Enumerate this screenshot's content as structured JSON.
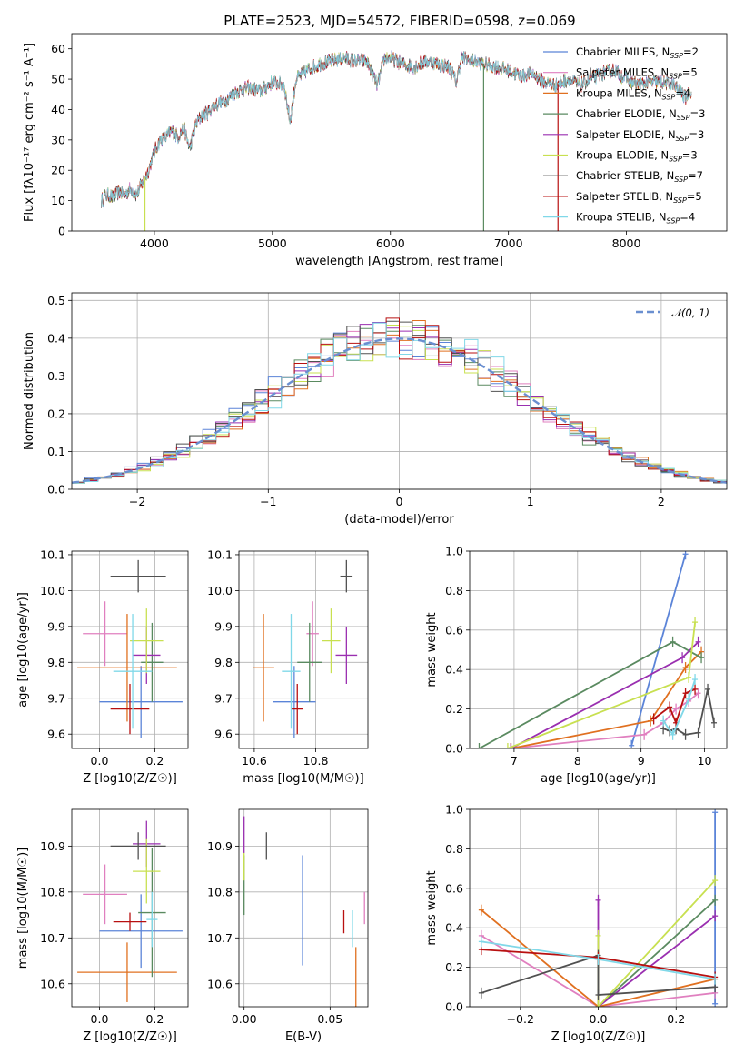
{
  "figure": {
    "title": "PLATE=2523, MJD=54572, FIBERID=0598, z=0.069"
  },
  "colors": {
    "Chabrier MILES": "#5b84d8",
    "Salpeter MILES": "#e07fbf",
    "Kroupa MILES": "#e07020",
    "Chabrier ELODIE": "#5a8a60",
    "Salpeter ELODIE": "#9a2fb0",
    "Kroupa ELODIE": "#c8e050",
    "Chabrier STELIB": "#505050",
    "Salpeter STELIB": "#b81010",
    "Kroupa STELIB": "#80d8e8"
  },
  "chart_data": [
    {
      "id": "spectrum",
      "type": "line",
      "title": "PLATE=2523, MJD=54572, FIBERID=0598, z=0.069",
      "xlabel": "wavelength [Angstrom, rest frame]",
      "ylabel": "Flux [fλ10⁻¹⁷ erg cm⁻² s⁻¹ A⁻¹]",
      "xlim": [
        3300,
        8850
      ],
      "ylim": [
        0,
        65
      ],
      "xticks": [
        "4000",
        "5000",
        "6000",
        "7000",
        "8000"
      ],
      "yticks": [
        "0",
        "10",
        "20",
        "30",
        "40",
        "50",
        "60"
      ],
      "grid": false,
      "legend_position": "top-right",
      "x": [
        3550,
        3600,
        3650,
        3700,
        3750,
        3800,
        3850,
        3900,
        3950,
        4000,
        4050,
        4100,
        4150,
        4200,
        4250,
        4300,
        4350,
        4400,
        4450,
        4500,
        4600,
        4700,
        4800,
        4900,
        5000,
        5100,
        5150,
        5200,
        5300,
        5400,
        5500,
        5600,
        5700,
        5800,
        5890,
        5950,
        6000,
        6100,
        6200,
        6300,
        6400,
        6500,
        6560,
        6600,
        6700,
        6800,
        6900,
        7000,
        7100,
        7200,
        7300,
        7400,
        7500,
        7600,
        7700,
        7800,
        7900,
        8000,
        8100,
        8200,
        8300,
        8400,
        8500,
        8550
      ],
      "flux": [
        10,
        12,
        11,
        13,
        12,
        14,
        12,
        16,
        20,
        26,
        30,
        31,
        33,
        31,
        34,
        27,
        35,
        38,
        39,
        41,
        43,
        46,
        47,
        46,
        49,
        48,
        36,
        50,
        53,
        55,
        56,
        57,
        56,
        56,
        48,
        57,
        57,
        55,
        54,
        56,
        55,
        54,
        49,
        57,
        56,
        55,
        54,
        53,
        51,
        52,
        49,
        48,
        50,
        48,
        50,
        52,
        53,
        50,
        48,
        49,
        49,
        48,
        44,
        46
      ],
      "series": [
        {
          "name": "Chabrier MILES, N_SSP=2"
        },
        {
          "name": "Salpeter MILES, N_SSP=5"
        },
        {
          "name": "Kroupa MILES, N_SSP=4"
        },
        {
          "name": "Chabrier ELODIE, N_SSP=3"
        },
        {
          "name": "Salpeter ELODIE, N_SSP=3"
        },
        {
          "name": "Kroupa ELODIE, N_SSP=3"
        },
        {
          "name": "Chabrier STELIB, N_SSP=7"
        },
        {
          "name": "Salpeter STELIB, N_SSP=5"
        },
        {
          "name": "Kroupa STELIB, N_SSP=4"
        }
      ],
      "dropouts": [
        {
          "series": "Kroupa ELODIE, N_SSP=3",
          "x": 3920
        },
        {
          "series": "Chabrier ELODIE, N_SSP=3",
          "x": 6790
        },
        {
          "series": "Salpeter STELIB, N_SSP=5",
          "x": 7420
        }
      ]
    },
    {
      "id": "residuals",
      "type": "line",
      "xlabel": "(data-model)/error",
      "ylabel": "Normed distribution",
      "xlim": [
        -2.5,
        2.5
      ],
      "ylim": [
        0,
        0.52
      ],
      "xticks": [
        "−2",
        "−1",
        "0",
        "1",
        "2"
      ],
      "yticks": [
        "0.0",
        "0.1",
        "0.2",
        "0.3",
        "0.4",
        "0.5"
      ],
      "grid": true,
      "legend_position": "top-right",
      "legend": "𝒩(0, 1)",
      "reference_curve": {
        "name": "N(0,1)",
        "mean": 0,
        "sigma": 1
      },
      "bin_width": 0.1,
      "note_values": "histograms approximate the Gaussian with per-series scatter"
    },
    {
      "id": "age_vs_Z",
      "type": "scatter",
      "xlabel": "Z [log10(Z/Z☉)]",
      "ylabel": "age  [log10(age/yr)]",
      "xlim": [
        -0.1,
        0.32
      ],
      "ylim": [
        9.56,
        10.11
      ],
      "xticks": [
        "0.0",
        "0.2"
      ],
      "yticks": [
        "9.6",
        "9.7",
        "9.8",
        "9.9",
        "10.0",
        "10.1"
      ],
      "grid": true,
      "points": [
        {
          "series": "Chabrier MILES",
          "x": 0.15,
          "y": 9.69,
          "xerr": 0.15,
          "yerr": 0.1
        },
        {
          "series": "Salpeter MILES",
          "x": 0.02,
          "y": 9.88,
          "xerr": 0.08,
          "yerr": 0.09
        },
        {
          "series": "Kroupa MILES",
          "x": 0.1,
          "y": 9.785,
          "xerr": 0.18,
          "yerr": 0.15
        },
        {
          "series": "Chabrier ELODIE",
          "x": 0.19,
          "y": 9.8,
          "xerr": 0.04,
          "yerr": 0.11
        },
        {
          "series": "Salpeter ELODIE",
          "x": 0.17,
          "y": 9.82,
          "xerr": 0.05,
          "yerr": 0.08
        },
        {
          "series": "Kroupa ELODIE",
          "x": 0.17,
          "y": 9.86,
          "xerr": 0.06,
          "yerr": 0.09
        },
        {
          "series": "Chabrier STELIB",
          "x": 0.14,
          "y": 10.04,
          "xerr": 0.1,
          "yerr": 0.045
        },
        {
          "series": "Salpeter STELIB",
          "x": 0.11,
          "y": 9.67,
          "xerr": 0.07,
          "yerr": 0.07
        },
        {
          "series": "Kroupa STELIB",
          "x": 0.12,
          "y": 9.775,
          "xerr": 0.07,
          "yerr": 0.16
        }
      ]
    },
    {
      "id": "age_vs_mass",
      "type": "scatter",
      "xlabel": "mass [log10(M/M☉)]",
      "ylabel": "",
      "xlim": [
        10.55,
        10.97
      ],
      "ylim": [
        9.56,
        10.11
      ],
      "xticks": [
        "10.6",
        "10.8"
      ],
      "yticks": [
        "9.6",
        "9.7",
        "9.8",
        "9.9",
        "10.0",
        "10.1"
      ],
      "grid": true,
      "points": [
        {
          "series": "Chabrier MILES",
          "x": 10.73,
          "y": 9.69,
          "xerr": 0.07,
          "yerr": 0.1
        },
        {
          "series": "Salpeter MILES",
          "x": 10.79,
          "y": 9.88,
          "xerr": 0.02,
          "yerr": 0.09
        },
        {
          "series": "Kroupa MILES",
          "x": 10.63,
          "y": 9.785,
          "xerr": 0.035,
          "yerr": 0.15
        },
        {
          "series": "Chabrier ELODIE",
          "x": 10.78,
          "y": 9.8,
          "xerr": 0.04,
          "yerr": 0.11
        },
        {
          "series": "Salpeter ELODIE",
          "x": 10.9,
          "y": 9.82,
          "xerr": 0.035,
          "yerr": 0.08
        },
        {
          "series": "Kroupa ELODIE",
          "x": 10.85,
          "y": 9.86,
          "xerr": 0.03,
          "yerr": 0.09
        },
        {
          "series": "Chabrier STELIB",
          "x": 10.9,
          "y": 10.04,
          "xerr": 0.02,
          "yerr": 0.045
        },
        {
          "series": "Salpeter STELIB",
          "x": 10.74,
          "y": 9.67,
          "xerr": 0.02,
          "yerr": 0.07
        },
        {
          "series": "Kroupa STELIB",
          "x": 10.72,
          "y": 9.775,
          "xerr": 0.03,
          "yerr": 0.16
        }
      ]
    },
    {
      "id": "weight_vs_age",
      "type": "line",
      "xlabel": "age  [log10(age/yr)]",
      "ylabel": "mass weight",
      "xlim": [
        6.3,
        10.35
      ],
      "ylim": [
        0,
        1.0
      ],
      "xticks": [
        "7",
        "8",
        "9",
        "10"
      ],
      "yticks": [
        "0.0",
        "0.2",
        "0.4",
        "0.6",
        "0.8",
        "1.0"
      ],
      "grid": true,
      "series": [
        {
          "name": "Chabrier MILES",
          "x": [
            8.85,
            9.7
          ],
          "y": [
            0.015,
            0.985
          ]
        },
        {
          "name": "Salpeter MILES",
          "x": [
            6.95,
            9.05,
            9.35,
            9.55,
            9.75,
            9.9
          ],
          "y": [
            0.0,
            0.07,
            0.13,
            0.2,
            0.24,
            0.28
          ]
        },
        {
          "name": "Kroupa MILES",
          "x": [
            6.95,
            9.15,
            9.7,
            9.95
          ],
          "y": [
            0.0,
            0.14,
            0.41,
            0.49
          ]
        },
        {
          "name": "Chabrier ELODIE",
          "x": [
            6.45,
            9.5,
            9.95
          ],
          "y": [
            0.0,
            0.54,
            0.46
          ]
        },
        {
          "name": "Salpeter ELODIE",
          "x": [
            6.95,
            9.65,
            9.9
          ],
          "y": [
            0.0,
            0.46,
            0.54
          ]
        },
        {
          "name": "Kroupa ELODIE",
          "x": [
            6.9,
            9.75,
            9.85
          ],
          "y": [
            0.0,
            0.36,
            0.64
          ]
        },
        {
          "name": "Chabrier STELIB",
          "x": [
            9.35,
            9.45,
            9.55,
            9.7,
            9.9,
            10.05,
            10.15
          ],
          "y": [
            0.1,
            0.09,
            0.1,
            0.07,
            0.08,
            0.3,
            0.13
          ]
        },
        {
          "name": "Salpeter STELIB",
          "x": [
            9.2,
            9.45,
            9.55,
            9.7,
            9.85
          ],
          "y": [
            0.15,
            0.21,
            0.13,
            0.28,
            0.3
          ]
        },
        {
          "name": "Kroupa STELIB",
          "x": [
            9.35,
            9.5,
            9.75,
            9.85
          ],
          "y": [
            0.14,
            0.07,
            0.25,
            0.35
          ]
        }
      ]
    },
    {
      "id": "mass_vs_Z",
      "type": "scatter",
      "xlabel": "Z [log10(Z/Z☉)]",
      "ylabel": "mass [log10(M/M☉)]",
      "xlim": [
        -0.1,
        0.32
      ],
      "ylim": [
        10.55,
        10.98
      ],
      "xticks": [
        "0.0",
        "0.2"
      ],
      "yticks": [
        "10.6",
        "10.7",
        "10.8",
        "10.9"
      ],
      "grid": true,
      "points": [
        {
          "series": "Chabrier MILES",
          "x": 0.15,
          "y": 10.715,
          "xerr": 0.15,
          "yerr": 0.08
        },
        {
          "series": "Salpeter MILES",
          "x": 0.02,
          "y": 10.795,
          "xerr": 0.08,
          "yerr": 0.065
        },
        {
          "series": "Kroupa MILES",
          "x": 0.1,
          "y": 10.625,
          "xerr": 0.18,
          "yerr": 0.065
        },
        {
          "series": "Chabrier ELODIE",
          "x": 0.19,
          "y": 10.755,
          "xerr": 0.05,
          "yerr": 0.14
        },
        {
          "series": "Salpeter ELODIE",
          "x": 0.17,
          "y": 10.905,
          "xerr": 0.05,
          "yerr": 0.05
        },
        {
          "series": "Kroupa ELODIE",
          "x": 0.17,
          "y": 10.845,
          "xerr": 0.05,
          "yerr": 0.07
        },
        {
          "series": "Chabrier STELIB",
          "x": 0.14,
          "y": 10.9,
          "xerr": 0.1,
          "yerr": 0.03
        },
        {
          "series": "Salpeter STELIB",
          "x": 0.11,
          "y": 10.735,
          "xerr": 0.06,
          "yerr": 0.02
        },
        {
          "series": "Kroupa STELIB",
          "x": 0.19,
          "y": 10.74,
          "xerr": 0.02,
          "yerr": 0.06
        }
      ]
    },
    {
      "id": "mass_vs_ebv",
      "type": "scatter",
      "xlabel": "E(B-V)",
      "ylabel": "",
      "xlim": [
        -0.003,
        0.072
      ],
      "ylim": [
        10.55,
        10.98
      ],
      "xticks": [
        "0.00",
        "0.05"
      ],
      "yticks": [
        "10.6",
        "10.7",
        "10.8",
        "10.9"
      ],
      "grid": true,
      "points": [
        {
          "series": "Chabrier MILES",
          "x": 0.034,
          "y": 10.76,
          "xerr": 0,
          "yerr": 0.12
        },
        {
          "series": "Salpeter MILES",
          "x": 0.07,
          "y": 10.765,
          "xerr": 0,
          "yerr": 0.035
        },
        {
          "series": "Kroupa MILES",
          "x": 0.065,
          "y": 10.615,
          "xerr": 0,
          "yerr": 0.065
        },
        {
          "series": "Chabrier ELODIE",
          "x": 0.0,
          "y": 10.815,
          "xerr": 0,
          "yerr": 0.065
        },
        {
          "series": "Salpeter ELODIE",
          "x": 0.0,
          "y": 10.925,
          "xerr": 0,
          "yerr": 0.04
        },
        {
          "series": "Kroupa ELODIE",
          "x": 0.0,
          "y": 10.855,
          "xerr": 0,
          "yerr": 0.03
        },
        {
          "series": "Chabrier STELIB",
          "x": 0.013,
          "y": 10.9,
          "xerr": 0,
          "yerr": 0.03
        },
        {
          "series": "Salpeter STELIB",
          "x": 0.058,
          "y": 10.735,
          "xerr": 0,
          "yerr": 0.025
        },
        {
          "series": "Kroupa STELIB",
          "x": 0.063,
          "y": 10.72,
          "xerr": 0,
          "yerr": 0.04
        }
      ]
    },
    {
      "id": "weight_vs_Z",
      "type": "line",
      "xlabel": "Z [log10(Z/Z☉)]",
      "ylabel": "mass weight",
      "xlim": [
        -0.33,
        0.33
      ],
      "ylim": [
        0,
        1.0
      ],
      "xticks": [
        "−0.2",
        "0.0",
        "0.2"
      ],
      "yticks": [
        "0.0",
        "0.2",
        "0.4",
        "0.6",
        "0.8",
        "1.0"
      ],
      "grid": true,
      "series": [
        {
          "name": "Chabrier MILES",
          "x": [
            0.3,
            0.3
          ],
          "y": [
            0.015,
            0.985
          ]
        },
        {
          "name": "Salpeter MILES",
          "x": [
            -0.3,
            0.0,
            0.3
          ],
          "y": [
            0.36,
            0.0,
            0.07
          ]
        },
        {
          "name": "Kroupa MILES",
          "x": [
            -0.3,
            0.0,
            0.3
          ],
          "y": [
            0.49,
            0.0,
            0.14
          ]
        },
        {
          "name": "Chabrier ELODIE",
          "x": [
            0.0,
            0.3
          ],
          "y": [
            0.0,
            0.54
          ]
        },
        {
          "name": "Salpeter ELODIE",
          "x": [
            0.0,
            0.0,
            0.3
          ],
          "y": [
            0.54,
            0.0,
            0.46
          ]
        },
        {
          "name": "Kroupa ELODIE",
          "x": [
            0.0,
            0.0,
            0.3
          ],
          "y": [
            0.36,
            0.0,
            0.64
          ]
        },
        {
          "name": "Chabrier STELIB",
          "x": [
            -0.3,
            0.0,
            0.0,
            0.3
          ],
          "y": [
            0.07,
            0.26,
            0.06,
            0.1
          ]
        },
        {
          "name": "Salpeter STELIB",
          "x": [
            -0.3,
            0.0,
            0.3
          ],
          "y": [
            0.29,
            0.25,
            0.15
          ]
        },
        {
          "name": "Kroupa STELIB",
          "x": [
            -0.3,
            0.0,
            0.3
          ],
          "y": [
            0.33,
            0.24,
            0.14
          ]
        }
      ]
    }
  ]
}
